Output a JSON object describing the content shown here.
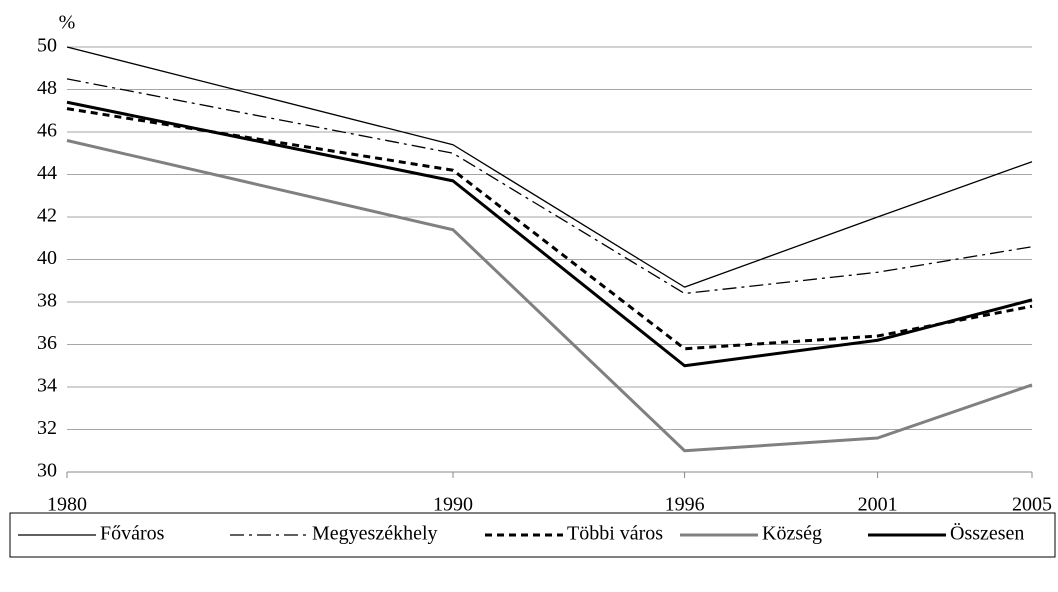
{
  "chart_data": {
    "type": "line",
    "y_unit_label": "%",
    "x": [
      1980,
      1990,
      1996,
      2001,
      2005
    ],
    "xlim": [
      1980,
      2005
    ],
    "xticks": [
      1980,
      1990,
      1996,
      2001,
      2005
    ],
    "ylim": [
      30,
      50
    ],
    "yticks": [
      30,
      32,
      34,
      36,
      38,
      40,
      42,
      44,
      46,
      48,
      50
    ],
    "grid": true,
    "legend": "bottom",
    "series": [
      {
        "name": "Főváros",
        "color": "#000000",
        "width": 1.3,
        "dash": "solid",
        "values": [
          50,
          45.4,
          38.7,
          42.0,
          44.6
        ]
      },
      {
        "name": "Megyeszékhely",
        "color": "#000000",
        "width": 1.3,
        "dash": "dash-dot",
        "values": [
          48.5,
          45.0,
          38.4,
          39.4,
          40.6
        ]
      },
      {
        "name": "Többi város",
        "color": "#000000",
        "width": 3,
        "dash": "dashed",
        "values": [
          47.1,
          44.2,
          35.8,
          36.4,
          37.8
        ]
      },
      {
        "name": "Község",
        "color": "#808080",
        "width": 3,
        "dash": "solid",
        "values": [
          45.6,
          41.4,
          31.0,
          31.6,
          34.1
        ]
      },
      {
        "name": "Összesen",
        "color": "#000000",
        "width": 3,
        "dash": "solid",
        "values": [
          47.4,
          43.7,
          35.0,
          36.2,
          38.1
        ]
      }
    ]
  }
}
